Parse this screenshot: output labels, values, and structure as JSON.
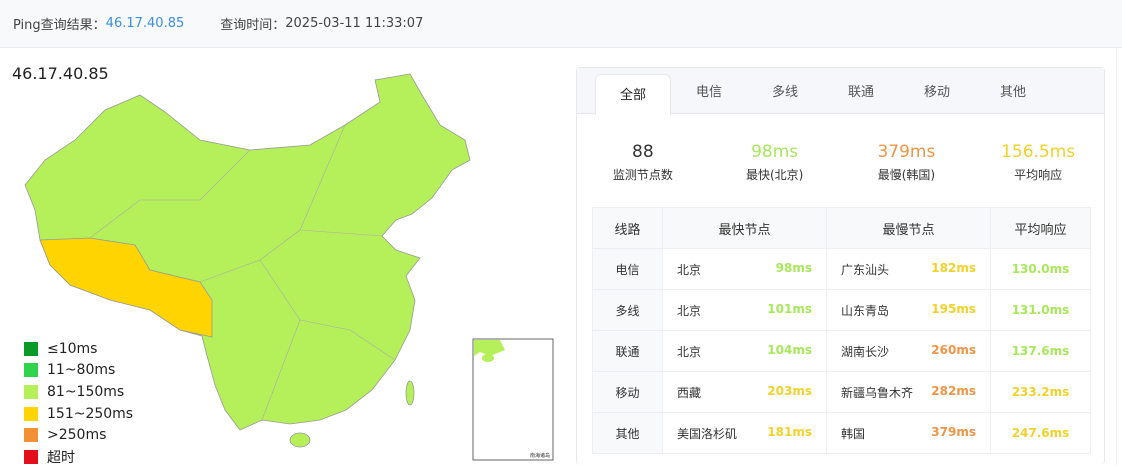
{
  "header": {
    "result_label": "Ping查询结果：",
    "ip": "46.17.40.85",
    "time_label": "查询时间：",
    "time": "2025-03-11 11:33:07"
  },
  "map": {
    "title": "46.17.40.85",
    "inset_label": "南海诸岛",
    "legend": [
      {
        "label": "≤10ms",
        "color": "#0a9a2a"
      },
      {
        "label": "11~80ms",
        "color": "#2fd34c"
      },
      {
        "label": "81~150ms",
        "color": "#b5f05a"
      },
      {
        "label": "151~250ms",
        "color": "#ffd400"
      },
      {
        "label": ">250ms",
        "color": "#f39035"
      },
      {
        "label": "超时",
        "color": "#e30f1d"
      }
    ],
    "colors": {
      "mainland": "#b5f05a",
      "tibet": "#ffd400"
    }
  },
  "tabs": [
    "全部",
    "电信",
    "多线",
    "联通",
    "移动",
    "其他"
  ],
  "active_tab": "全部",
  "colors": {
    "green": "#a8e85c",
    "yellow": "#f2d22a",
    "orange": "#ee9547"
  },
  "stats": [
    {
      "value": "88",
      "label": "监测节点数",
      "color": "#333333"
    },
    {
      "value": "98ms",
      "label": "最快(北京)",
      "color": "#a8e85c"
    },
    {
      "value": "379ms",
      "label": "最慢(韩国)",
      "color": "#ee9547"
    },
    {
      "value": "156.5ms",
      "label": "平均响应",
      "color": "#f2d22a"
    }
  ],
  "table": {
    "headers": [
      "线路",
      "最快节点",
      "最慢节点",
      "平均响应"
    ],
    "rows": [
      {
        "line": "电信",
        "fast": "北京",
        "fast_ms": "98ms",
        "fast_c": "#a8e85c",
        "slow": "广东汕头",
        "slow_ms": "182ms",
        "slow_c": "#f2d22a",
        "avg": "130.0ms",
        "avg_c": "#a8e85c"
      },
      {
        "line": "多线",
        "fast": "北京",
        "fast_ms": "101ms",
        "fast_c": "#a8e85c",
        "slow": "山东青岛",
        "slow_ms": "195ms",
        "slow_c": "#f2d22a",
        "avg": "131.0ms",
        "avg_c": "#a8e85c"
      },
      {
        "line": "联通",
        "fast": "北京",
        "fast_ms": "104ms",
        "fast_c": "#a8e85c",
        "slow": "湖南长沙",
        "slow_ms": "260ms",
        "slow_c": "#ee9547",
        "avg": "137.6ms",
        "avg_c": "#a8e85c"
      },
      {
        "line": "移动",
        "fast": "西藏",
        "fast_ms": "203ms",
        "fast_c": "#f2d22a",
        "slow": "新疆乌鲁木齐",
        "slow_ms": "282ms",
        "slow_c": "#ee9547",
        "avg": "233.2ms",
        "avg_c": "#f2d22a"
      },
      {
        "line": "其他",
        "fast": "美国洛杉矶",
        "fast_ms": "181ms",
        "fast_c": "#f2d22a",
        "slow": "韩国",
        "slow_ms": "379ms",
        "slow_c": "#ee9547",
        "avg": "247.6ms",
        "avg_c": "#f2d22a"
      }
    ]
  }
}
